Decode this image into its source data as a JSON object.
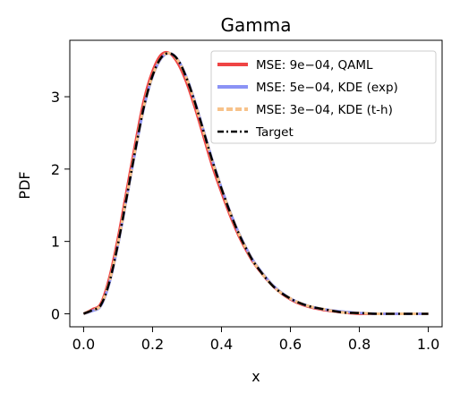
{
  "chart_data": {
    "type": "line",
    "title": "Gamma",
    "xlabel": "x",
    "ylabel": "PDF",
    "xlim": [
      -0.04,
      1.04
    ],
    "ylim": [
      -0.18,
      3.78
    ],
    "xticks": [
      0.0,
      0.2,
      0.4,
      0.6,
      0.8,
      1.0
    ],
    "xtick_labels": [
      "0.0",
      "0.2",
      "0.4",
      "0.6",
      "0.8",
      "1.0"
    ],
    "yticks": [
      0,
      1,
      2,
      3
    ],
    "ytick_labels": [
      "0",
      "1",
      "2",
      "3"
    ],
    "grid": false,
    "legend_position": "top-right",
    "x": [
      0.0,
      0.025,
      0.05,
      0.075,
      0.1,
      0.125,
      0.15,
      0.175,
      0.2,
      0.225,
      0.25,
      0.275,
      0.3,
      0.325,
      0.35,
      0.375,
      0.4,
      0.425,
      0.45,
      0.475,
      0.5,
      0.55,
      0.6,
      0.65,
      0.7,
      0.75,
      0.8,
      0.85,
      0.9,
      0.95,
      1.0
    ],
    "series": [
      {
        "legend": "MSE: 9e−04, QAML",
        "color": "#ef4444",
        "dash": "solid",
        "values": [
          0.0,
          0.06,
          0.14,
          0.5,
          1.05,
          1.7,
          2.35,
          2.95,
          3.35,
          3.58,
          3.6,
          3.45,
          3.18,
          2.82,
          2.42,
          2.02,
          1.68,
          1.36,
          1.08,
          0.85,
          0.66,
          0.38,
          0.2,
          0.1,
          0.05,
          0.02,
          0.0,
          0.0,
          0.0,
          0.0,
          0.0
        ]
      },
      {
        "legend": "MSE: 5e−04, KDE (exp)",
        "color": "#8b93f5",
        "dash": "solid",
        "values": [
          0.0,
          0.04,
          0.11,
          0.43,
          0.96,
          1.6,
          2.25,
          2.85,
          3.28,
          3.53,
          3.6,
          3.5,
          3.25,
          2.9,
          2.5,
          2.1,
          1.74,
          1.41,
          1.12,
          0.88,
          0.68,
          0.39,
          0.21,
          0.11,
          0.06,
          0.03,
          0.01,
          0.0,
          0.0,
          0.0,
          0.0
        ]
      },
      {
        "legend": "MSE: 3e−04, KDE (t-h)",
        "color": "#f7c28a",
        "dash": "dashed",
        "values": [
          0.0,
          0.05,
          0.12,
          0.45,
          0.98,
          1.62,
          2.27,
          2.87,
          3.29,
          3.54,
          3.6,
          3.49,
          3.24,
          2.88,
          2.48,
          2.08,
          1.73,
          1.4,
          1.11,
          0.87,
          0.67,
          0.38,
          0.21,
          0.11,
          0.06,
          0.02,
          0.01,
          0.0,
          0.0,
          0.0,
          0.0
        ]
      },
      {
        "legend": "Target",
        "color": "#000000",
        "dash": "dashdot",
        "values": [
          0.0,
          0.05,
          0.12,
          0.44,
          0.97,
          1.61,
          2.26,
          2.86,
          3.29,
          3.54,
          3.6,
          3.5,
          3.24,
          2.89,
          2.49,
          2.09,
          1.73,
          1.4,
          1.11,
          0.87,
          0.67,
          0.38,
          0.21,
          0.11,
          0.06,
          0.02,
          0.01,
          0.0,
          0.0,
          0.0,
          0.0
        ]
      }
    ]
  }
}
